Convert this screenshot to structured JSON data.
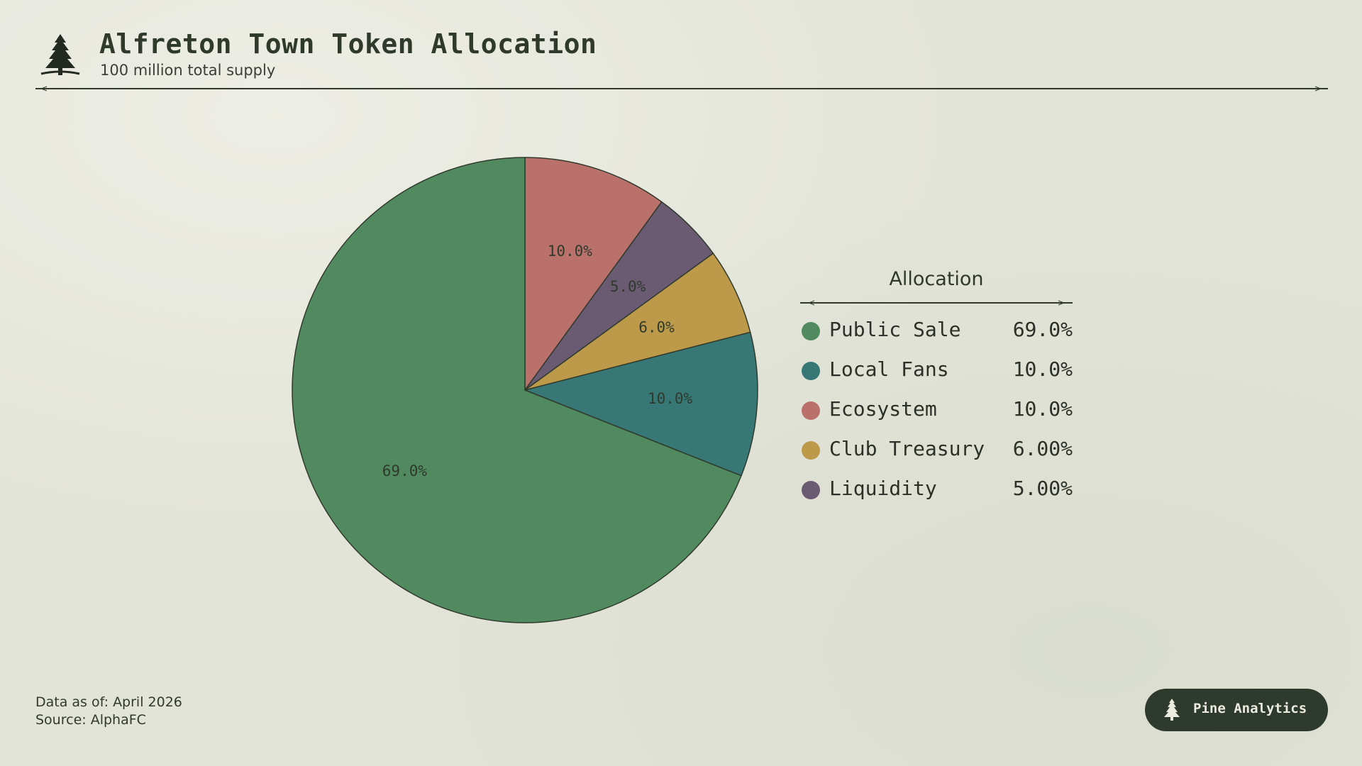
{
  "header": {
    "title": "Alfreton Town Token Allocation",
    "subtitle": "100 million total supply"
  },
  "legend": {
    "title": "Allocation",
    "items": [
      {
        "label": "Public Sale",
        "value": "69.0%",
        "color": "#528a5f"
      },
      {
        "label": "Local Fans",
        "value": "10.0%",
        "color": "#377876"
      },
      {
        "label": "Ecosystem",
        "value": "10.0%",
        "color": "#ba716b"
      },
      {
        "label": "Club Treasury",
        "value": "6.00%",
        "color": "#bd9a4a"
      },
      {
        "label": "Liquidity",
        "value": "5.00%",
        "color": "#6a5a72"
      }
    ]
  },
  "footer": {
    "date_note": "Data as of: April 2026",
    "source_note": "Source: AlphaFC"
  },
  "brand": {
    "name": "Pine Analytics",
    "icon": "pine-tree-icon"
  },
  "colors": {
    "background": "#e3e4d9",
    "ink": "#2f3a2d",
    "badge": "#2f3a2e"
  },
  "chart_data": {
    "type": "pie",
    "start": "12 o'clock",
    "direction": "clockwise",
    "slices": [
      {
        "label": "Ecosystem",
        "value": 10.0,
        "display": "10.0%",
        "color": "#ba716b"
      },
      {
        "label": "Liquidity",
        "value": 5.0,
        "display": "5.0%",
        "color": "#6a5a72"
      },
      {
        "label": "Club Treasury",
        "value": 6.0,
        "display": "6.0%",
        "color": "#bd9a4a"
      },
      {
        "label": "Local Fans",
        "value": 10.0,
        "display": "10.0%",
        "color": "#377876"
      },
      {
        "label": "Public Sale",
        "value": 69.0,
        "display": "69.0%",
        "color": "#528a5f"
      }
    ]
  }
}
